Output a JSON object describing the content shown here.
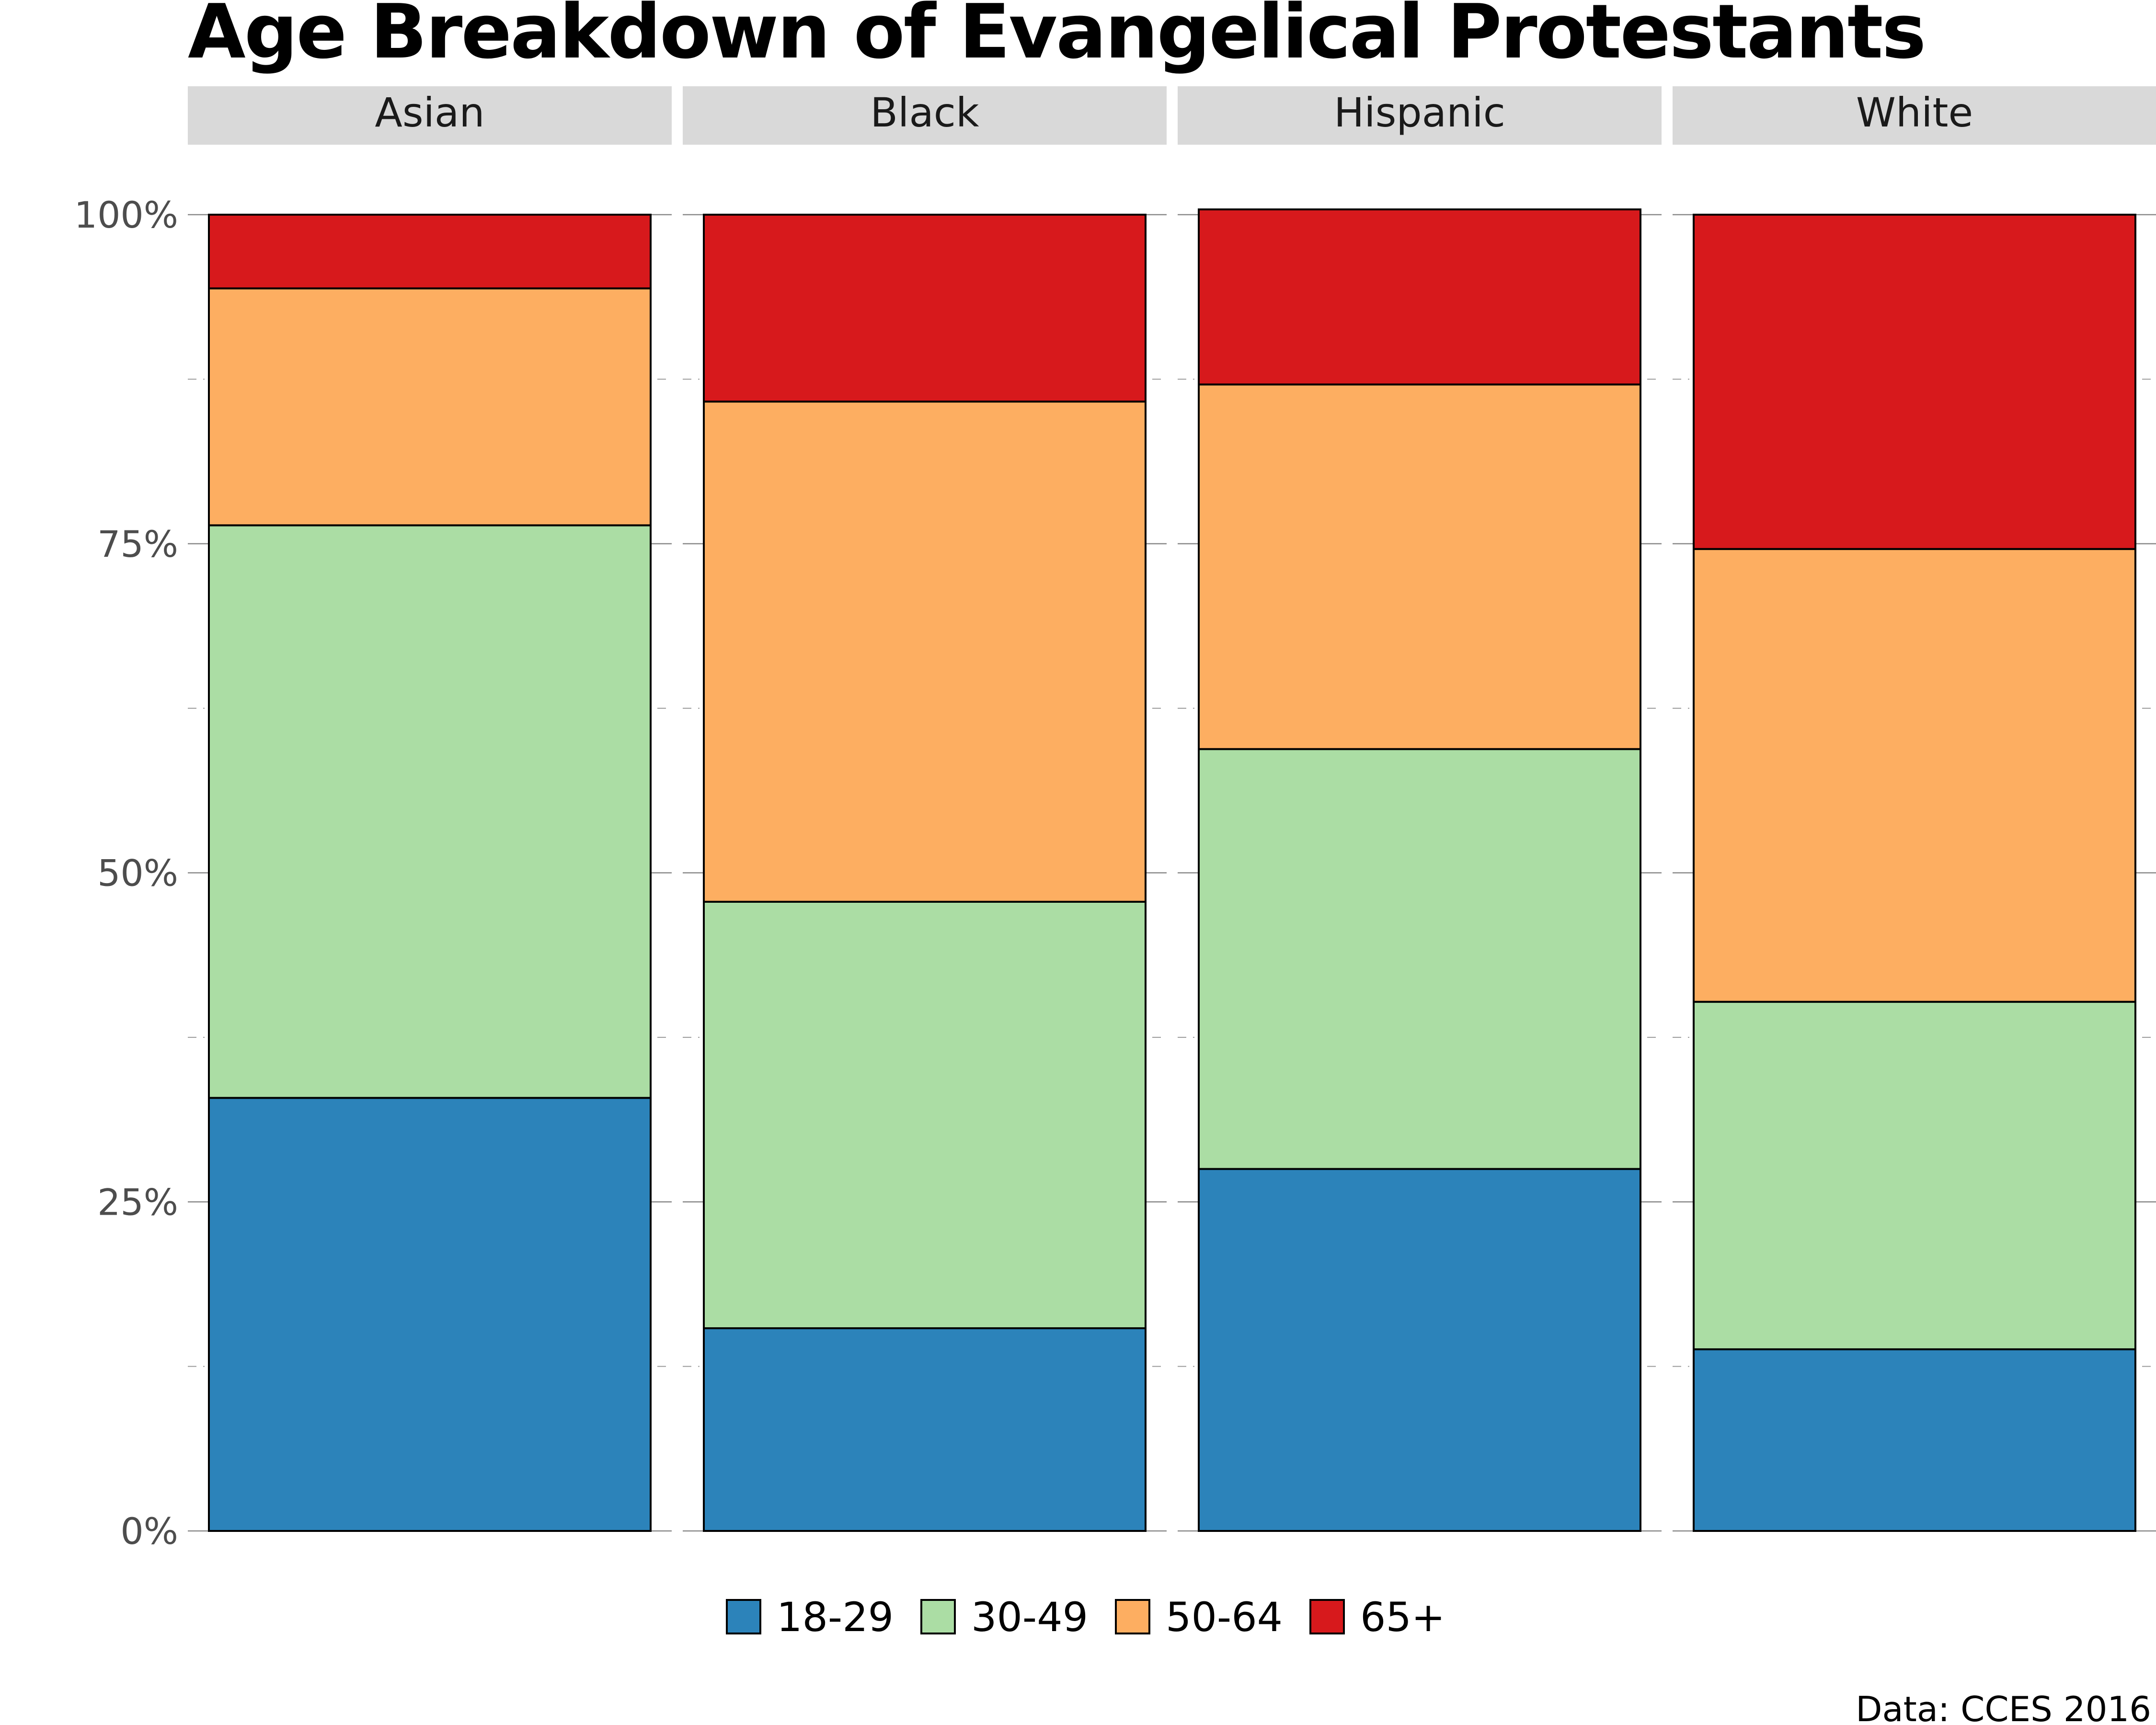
{
  "chart_data": {
    "type": "bar",
    "stacked": true,
    "percent": true,
    "title": "Age Breakdown of Evangelical Protestants",
    "caption": "Data: CCES 2016",
    "facets": [
      "Asian",
      "Black",
      "Hispanic",
      "White"
    ],
    "ylim": [
      0,
      1
    ],
    "y_ticks": [
      {
        "value": 0,
        "label": "0%"
      },
      {
        "value": 0.25,
        "label": "25%"
      },
      {
        "value": 0.5,
        "label": "50%"
      },
      {
        "value": 0.75,
        "label": "75%"
      },
      {
        "value": 1,
        "label": "100%"
      }
    ],
    "grid": true,
    "legend_position": "bottom",
    "series": [
      {
        "name": "18-29",
        "color": "#2c83ba",
        "values": [
          0.329,
          0.154,
          0.275,
          0.138
        ]
      },
      {
        "name": "30-49",
        "color": "#abdda4",
        "values": [
          0.435,
          0.324,
          0.319,
          0.264
        ]
      },
      {
        "name": "50-64",
        "color": "#fdae61",
        "values": [
          0.18,
          0.38,
          0.277,
          0.344
        ]
      },
      {
        "name": "65+",
        "color": "#d7191c",
        "values": [
          0.056,
          0.142,
          0.133,
          0.254
        ]
      }
    ]
  }
}
